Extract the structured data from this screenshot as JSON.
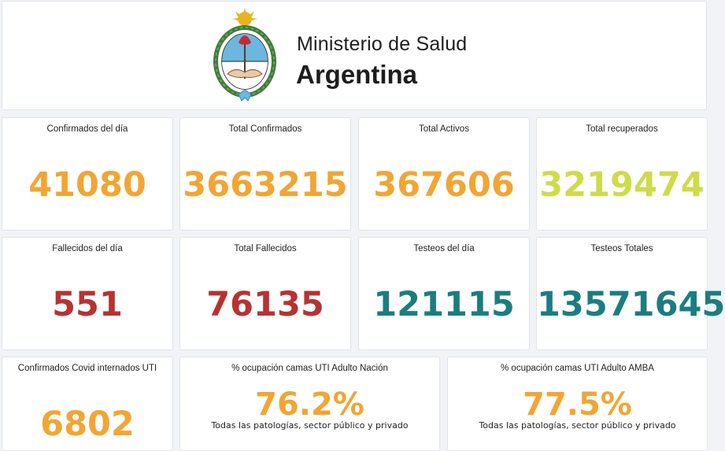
{
  "header": {
    "ministry": "Ministerio de Salud",
    "country": "Argentina"
  },
  "cards": [
    {
      "label": "Confirmados del día",
      "value": "41080"
    },
    {
      "label": "Total Confirmados",
      "value": "3663215"
    },
    {
      "label": "Total Activos",
      "value": "367606"
    },
    {
      "label": "Total recuperados",
      "value": "3219474"
    },
    {
      "label": "Fallecidos del día",
      "value": "551"
    },
    {
      "label": "Total Fallecidos",
      "value": "76135"
    },
    {
      "label": "Testeos del día",
      "value": "121115"
    },
    {
      "label": "Testeos Totales",
      "value": "13571645"
    },
    {
      "label": "Confirmados Covid internados UTI",
      "value": "6802"
    }
  ],
  "occupancy": [
    {
      "label": "% ocupación camas UTI Adulto Nación",
      "value": "76.2%",
      "note": "Todas las patologías, sector público y privado"
    },
    {
      "label": "% ocupación camas UTI Adulto AMBA",
      "value": "77.5%",
      "note": "Todas las patologías, sector público y privado"
    }
  ],
  "colors": {
    "orange": "#f2a533",
    "lime": "#cddc49",
    "red": "#b83232",
    "teal": "#1b7d80"
  },
  "icons": {
    "logo": "argentina-coat-of-arms-icon"
  }
}
